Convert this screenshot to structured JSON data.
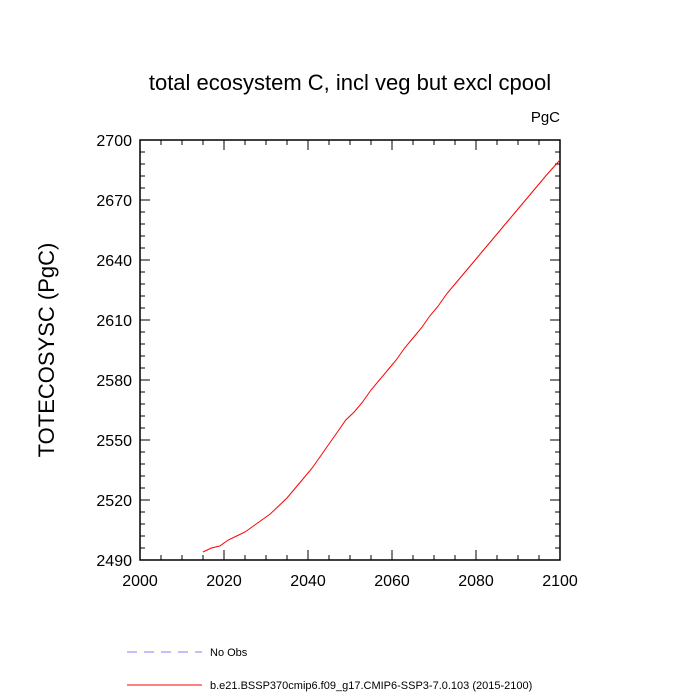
{
  "chart_data": {
    "type": "line",
    "title": "total ecosystem C, incl veg but excl cpool",
    "units_label": "PgC",
    "xlabel": "",
    "ylabel": "TOTECOSYSC  (PgC)",
    "xlim": [
      2000,
      2100
    ],
    "ylim": [
      2490,
      2700
    ],
    "x_ticks": [
      2000,
      2020,
      2040,
      2060,
      2080,
      2100
    ],
    "y_ticks": [
      2490,
      2520,
      2550,
      2580,
      2610,
      2640,
      2670,
      2700
    ],
    "series": [
      {
        "name": "b.e21.BSSP370cmip6.f09_g17.CMIP6-SSP3-7.0.103 (2015-2100)",
        "color": "#ff0000",
        "style": "solid",
        "x": [
          2015,
          2017,
          2019,
          2021,
          2023,
          2025,
          2027,
          2029,
          2031,
          2033,
          2035,
          2037,
          2039,
          2041,
          2043,
          2045,
          2047,
          2049,
          2051,
          2053,
          2055,
          2057,
          2059,
          2061,
          2063,
          2065,
          2067,
          2069,
          2071,
          2073,
          2075,
          2077,
          2079,
          2081,
          2083,
          2085,
          2087,
          2089,
          2091,
          2093,
          2095,
          2097,
          2100
        ],
        "y": [
          2494,
          2496,
          2497,
          2500,
          2502,
          2504,
          2507,
          2510,
          2513,
          2517,
          2521,
          2526,
          2531,
          2536,
          2542,
          2548,
          2554,
          2560,
          2564,
          2569,
          2575,
          2580,
          2585,
          2590,
          2596,
          2601,
          2606,
          2612,
          2617,
          2623,
          2628,
          2633,
          2638,
          2643,
          2648,
          2653,
          2658,
          2663,
          2668,
          2673,
          2678,
          2683,
          2690
        ]
      },
      {
        "name": "No Obs",
        "color": "#8080ff",
        "style": "dashed",
        "x": [],
        "y": []
      }
    ],
    "legend_position": "bottom-left"
  }
}
